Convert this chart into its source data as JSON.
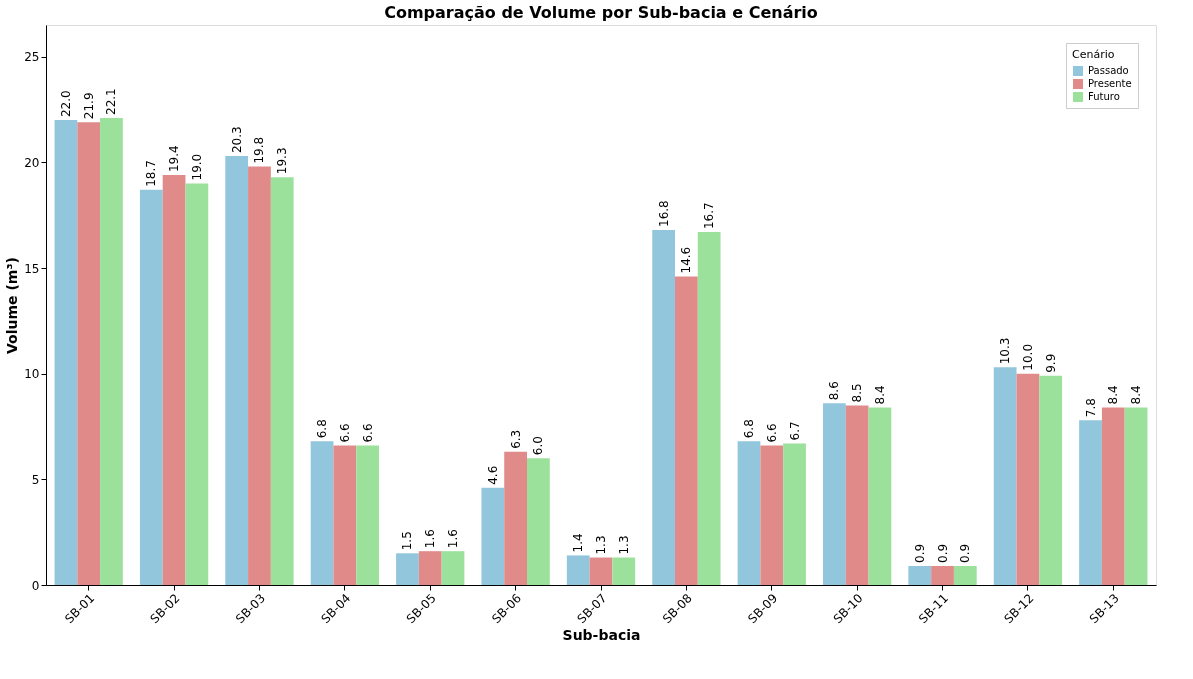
{
  "chart_data": {
    "type": "bar",
    "title": "Comparação de Volume por Sub-bacia e Cenário",
    "xlabel": "Sub-bacia",
    "ylabel": "Volume (m³)",
    "legend_title": "Cenário",
    "categories": [
      "SB-01",
      "SB-02",
      "SB-03",
      "SB-04",
      "SB-05",
      "SB-06",
      "SB-07",
      "SB-08",
      "SB-09",
      "SB-10",
      "SB-11",
      "SB-12",
      "SB-13"
    ],
    "series": [
      {
        "name": "Passado",
        "color": "#92c6dc",
        "values": [
          22,
          18.7,
          20.3,
          6.8,
          1.5,
          4.6,
          1.4,
          16.8,
          6.8,
          8.6,
          0.9,
          10.3,
          7.8
        ],
        "value_labels": [
          "22.0",
          "18.7",
          "20.3",
          "6.8",
          "1.5",
          "4.6",
          "1.4",
          "16.8",
          "6.8",
          "8.6",
          "0.9",
          "10.3",
          "7.8"
        ]
      },
      {
        "name": "Presente",
        "color": "#e08a8a",
        "values": [
          21.9,
          19.4,
          19.8,
          6.6,
          1.6,
          6.3,
          1.3,
          14.6,
          6.6,
          8.5,
          0.9,
          10,
          8.4
        ],
        "value_labels": [
          "21.9",
          "19.4",
          "19.8",
          "6.6",
          "1.6",
          "6.3",
          "1.3",
          "14.6",
          "6.6",
          "8.5",
          "0.9",
          "10.0",
          "8.4"
        ]
      },
      {
        "name": "Futuro",
        "color": "#9be09b",
        "values": [
          22.1,
          19,
          19.3,
          6.6,
          1.6,
          6,
          1.3,
          16.7,
          6.7,
          8.4,
          0.9,
          9.9,
          8.4
        ],
        "value_labels": [
          "22.1",
          "19.0",
          "19.3",
          "6.6",
          "1.6",
          "6.0",
          "1.3",
          "16.7",
          "6.7",
          "8.4",
          "0.9",
          "9.9",
          "8.4"
        ]
      }
    ],
    "ylim": [
      0,
      26.5
    ],
    "yticks": [
      0,
      5,
      10,
      15,
      20,
      25
    ],
    "grid": false,
    "legend": "top right"
  }
}
